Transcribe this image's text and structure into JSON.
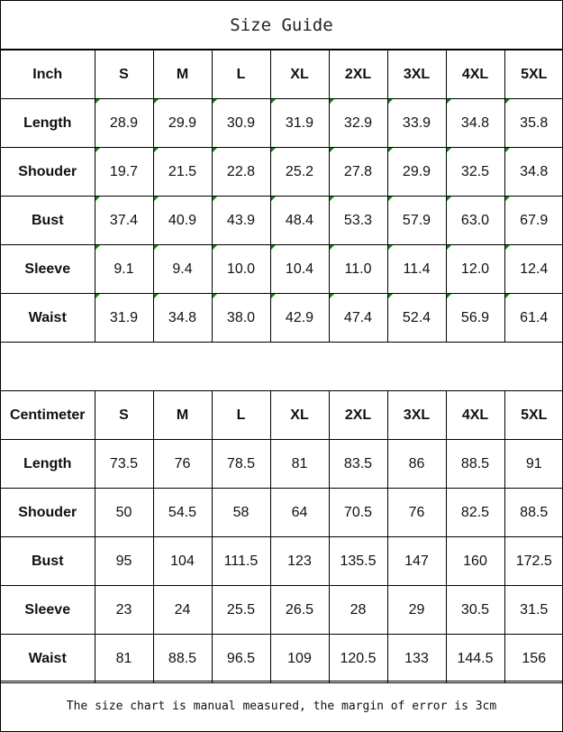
{
  "title": "Size Guide",
  "sizes": [
    "S",
    "M",
    "L",
    "XL",
    "2XL",
    "3XL",
    "4XL",
    "5XL"
  ],
  "inch": {
    "header": "Inch",
    "rows": [
      {
        "label": "Length",
        "values": [
          "28.9",
          "29.9",
          "30.9",
          "31.9",
          "32.9",
          "33.9",
          "34.8",
          "35.8"
        ]
      },
      {
        "label": "Shouder",
        "values": [
          "19.7",
          "21.5",
          "22.8",
          "25.2",
          "27.8",
          "29.9",
          "32.5",
          "34.8"
        ]
      },
      {
        "label": "Bust",
        "values": [
          "37.4",
          "40.9",
          "43.9",
          "48.4",
          "53.3",
          "57.9",
          "63.0",
          "67.9"
        ]
      },
      {
        "label": "Sleeve",
        "values": [
          "9.1",
          "9.4",
          "10.0",
          "10.4",
          "11.0",
          "11.4",
          "12.0",
          "12.4"
        ]
      },
      {
        "label": "Waist",
        "values": [
          "31.9",
          "34.8",
          "38.0",
          "42.9",
          "47.4",
          "52.4",
          "56.9",
          "61.4"
        ]
      }
    ]
  },
  "cm": {
    "header": "Centimeter",
    "rows": [
      {
        "label": "Length",
        "values": [
          "73.5",
          "76",
          "78.5",
          "81",
          "83.5",
          "86",
          "88.5",
          "91"
        ]
      },
      {
        "label": "Shouder",
        "values": [
          "50",
          "54.5",
          "58",
          "64",
          "70.5",
          "76",
          "82.5",
          "88.5"
        ]
      },
      {
        "label": "Bust",
        "values": [
          "95",
          "104",
          "111.5",
          "123",
          "135.5",
          "147",
          "160",
          "172.5"
        ]
      },
      {
        "label": "Sleeve",
        "values": [
          "23",
          "24",
          "25.5",
          "26.5",
          "28",
          "29",
          "30.5",
          "31.5"
        ]
      },
      {
        "label": "Waist",
        "values": [
          "81",
          "88.5",
          "96.5",
          "109",
          "120.5",
          "133",
          "144.5",
          "156"
        ]
      }
    ]
  },
  "footer": "The size chart is manual measured, the margin of error is 3cm",
  "colors": {
    "cell_marker": "#0a8a0a"
  }
}
